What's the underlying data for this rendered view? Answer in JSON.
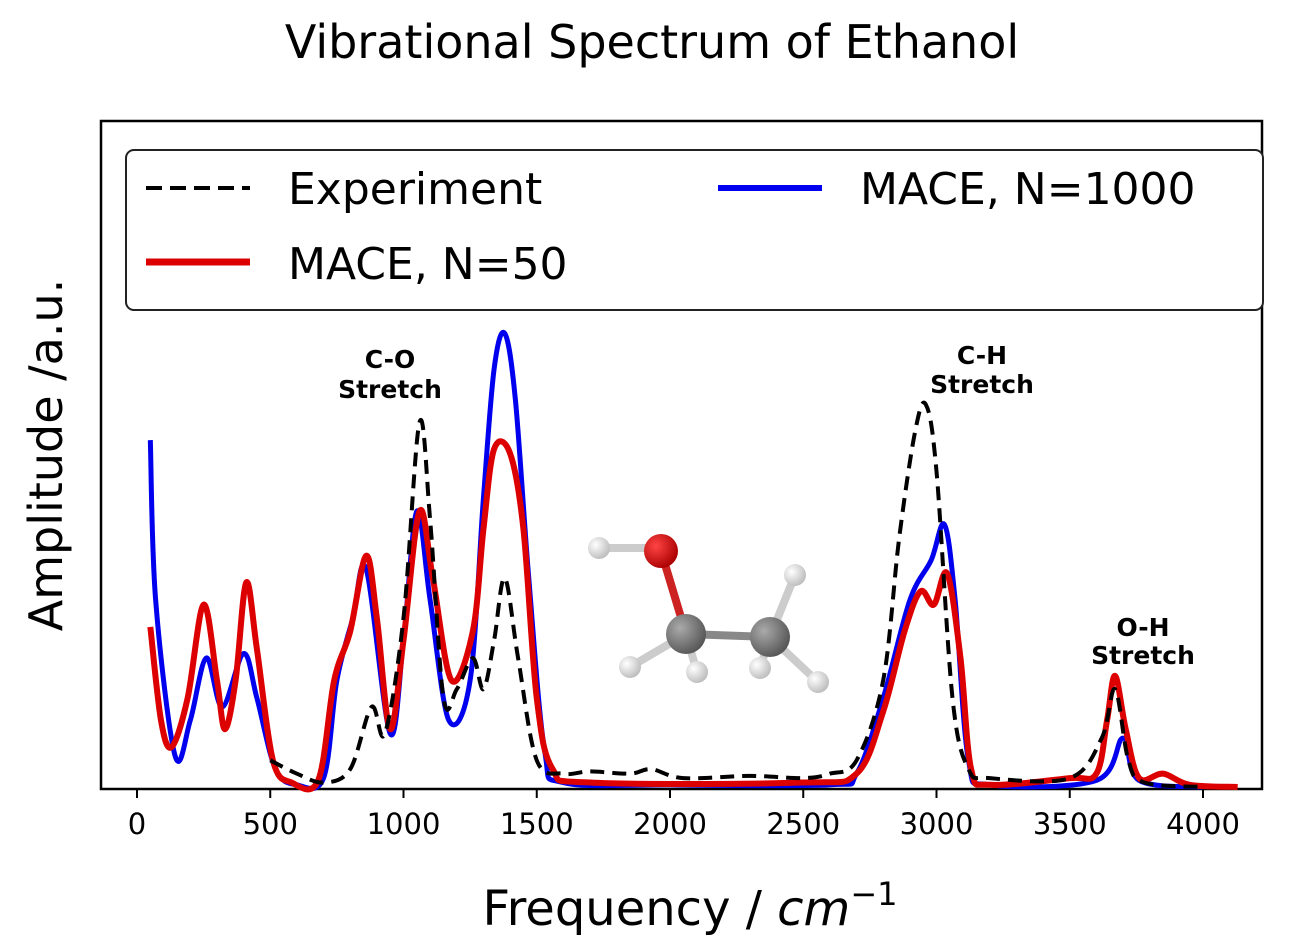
{
  "chart_data": {
    "type": "line",
    "title": "Vibrational Spectrum of Ethanol",
    "xlabel": "Frequency / cm",
    "xlabel_unit_exponent": "−1",
    "ylabel": "Amplitude /a.u.",
    "xlim": [
      -140,
      4220
    ],
    "ylim": [
      0,
      1.5
    ],
    "xticks": [
      0,
      500,
      1000,
      1500,
      2000,
      2500,
      3000,
      3500,
      4000
    ],
    "xtick_labels": [
      "0",
      "500",
      "1000",
      "1500",
      "2000",
      "2500",
      "3000",
      "3500",
      "4000"
    ],
    "yticks_shown": false,
    "grid": false,
    "legend": {
      "placement": "top",
      "columns": 2
    },
    "series": [
      {
        "name": "Experiment",
        "color": "#000000",
        "style": "dashed",
        "x": [
          500,
          600,
          700,
          800,
          880,
          930,
          1000,
          1060,
          1100,
          1150,
          1200,
          1260,
          1300,
          1340,
          1380,
          1430,
          1500,
          1600,
          1700,
          1850,
          1930,
          2050,
          2300,
          2500,
          2600,
          2700,
          2800,
          2860,
          2920,
          2960,
          3000,
          3060,
          3120,
          3200,
          3500,
          3620,
          3670,
          3720,
          3780,
          4000
        ],
        "y": [
          0.06,
          0.03,
          0.01,
          0.04,
          0.18,
          0.12,
          0.38,
          0.82,
          0.6,
          0.2,
          0.22,
          0.29,
          0.22,
          0.33,
          0.47,
          0.29,
          0.06,
          0.03,
          0.035,
          0.03,
          0.04,
          0.02,
          0.025,
          0.02,
          0.03,
          0.06,
          0.24,
          0.56,
          0.8,
          0.86,
          0.71,
          0.2,
          0.04,
          0.02,
          0.02,
          0.11,
          0.22,
          0.06,
          0.01,
          0.0
        ]
      },
      {
        "name": "MACE, N=1000",
        "color": "#0000ee",
        "style": "solid",
        "x": [
          50,
          70,
          143,
          200,
          260,
          320,
          400,
          450,
          520,
          600,
          700,
          750,
          810,
          860,
          950,
          1000,
          1050,
          1100,
          1170,
          1250,
          1300,
          1340,
          1380,
          1420,
          1470,
          1530,
          1600,
          2000,
          2600,
          2700,
          2800,
          2900,
          2980,
          3030,
          3070,
          3120,
          3200,
          3600,
          3700,
          3760,
          4000
        ],
        "y": [
          0.78,
          0.42,
          0.07,
          0.15,
          0.29,
          0.18,
          0.3,
          0.2,
          0.04,
          0.005,
          0.02,
          0.24,
          0.38,
          0.49,
          0.12,
          0.33,
          0.62,
          0.42,
          0.15,
          0.24,
          0.65,
          0.94,
          1.02,
          0.87,
          0.47,
          0.08,
          0.01,
          0.005,
          0.005,
          0.03,
          0.2,
          0.42,
          0.51,
          0.59,
          0.42,
          0.06,
          0.005,
          0.015,
          0.11,
          0.015,
          0.0
        ]
      },
      {
        "name": "MACE, N=50",
        "color": "#dd0000",
        "style": "solid",
        "x": [
          50,
          90,
          130,
          190,
          250,
          300,
          330,
          370,
          410,
          450,
          510,
          580,
          680,
          740,
          800,
          860,
          900,
          950,
          1000,
          1060,
          1110,
          1180,
          1260,
          1300,
          1340,
          1400,
          1450,
          1500,
          1560,
          1700,
          2500,
          2700,
          2800,
          2880,
          2940,
          2990,
          3040,
          3090,
          3130,
          3200,
          3500,
          3600,
          3640,
          3670,
          3710,
          3760,
          3850,
          3950,
          4130
        ],
        "y": [
          0.36,
          0.15,
          0.09,
          0.2,
          0.41,
          0.24,
          0.13,
          0.24,
          0.46,
          0.31,
          0.06,
          0.01,
          0.015,
          0.24,
          0.35,
          0.52,
          0.38,
          0.13,
          0.33,
          0.62,
          0.47,
          0.24,
          0.35,
          0.58,
          0.76,
          0.75,
          0.58,
          0.2,
          0.04,
          0.01,
          0.01,
          0.03,
          0.17,
          0.35,
          0.44,
          0.41,
          0.48,
          0.29,
          0.04,
          0.005,
          0.02,
          0.03,
          0.15,
          0.25,
          0.13,
          0.02,
          0.03,
          0.005,
          0.0
        ]
      }
    ],
    "annotations": [
      {
        "lines": [
          "C-O",
          "Stretch"
        ]
      },
      {
        "lines": [
          "C-H",
          "Stretch"
        ]
      },
      {
        "lines": [
          "O-H",
          "Stretch"
        ]
      }
    ],
    "inset": "ethanol-molecule"
  }
}
